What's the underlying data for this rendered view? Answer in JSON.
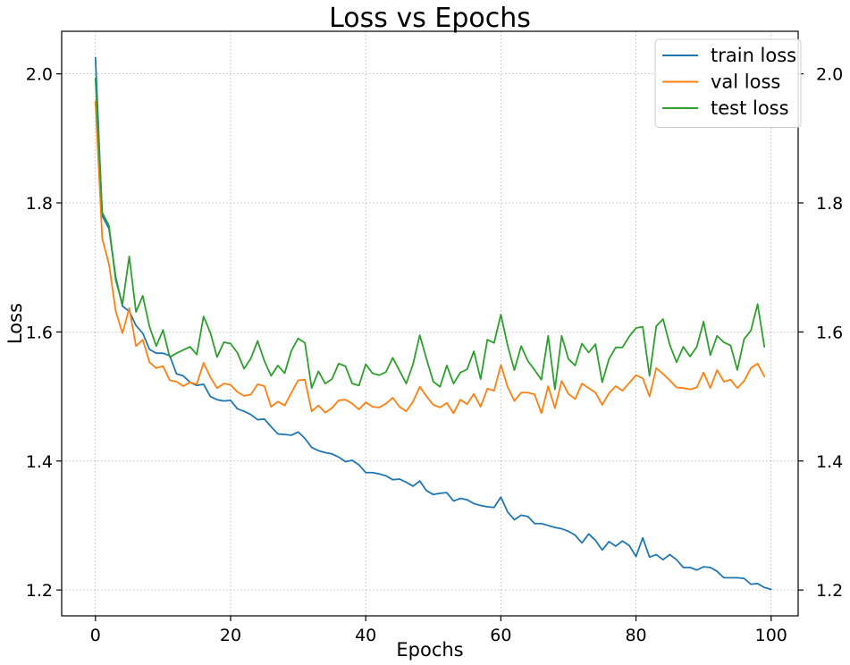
{
  "chart_data": {
    "type": "line",
    "title": "Loss vs Epochs",
    "xlabel": "Epochs",
    "ylabel": "Loss",
    "xlim": [
      -5,
      104
    ],
    "ylim": [
      1.16,
      2.066
    ],
    "xticks": [
      0,
      20,
      40,
      60,
      80,
      100
    ],
    "yticks": [
      1.2,
      1.4,
      1.6,
      1.8,
      2.0
    ],
    "yticks_right": true,
    "grid": true,
    "legend": "top-right",
    "series": [
      {
        "name": "train loss",
        "color": "#1f77b4",
        "values": [
          2.025,
          1.78,
          1.76,
          1.685,
          1.64,
          1.632,
          1.61,
          1.598,
          1.573,
          1.567,
          1.567,
          1.563,
          1.535,
          1.532,
          1.522,
          1.517,
          1.519,
          1.5,
          1.495,
          1.493,
          1.494,
          1.481,
          1.477,
          1.472,
          1.464,
          1.465,
          1.453,
          1.442,
          1.441,
          1.44,
          1.445,
          1.435,
          1.421,
          1.416,
          1.413,
          1.411,
          1.406,
          1.399,
          1.401,
          1.394,
          1.382,
          1.382,
          1.38,
          1.377,
          1.371,
          1.372,
          1.367,
          1.361,
          1.369,
          1.354,
          1.348,
          1.35,
          1.351,
          1.338,
          1.342,
          1.34,
          1.334,
          1.331,
          1.329,
          1.328,
          1.344,
          1.321,
          1.309,
          1.316,
          1.314,
          1.303,
          1.303,
          1.3,
          1.297,
          1.295,
          1.291,
          1.285,
          1.273,
          1.287,
          1.277,
          1.262,
          1.275,
          1.268,
          1.276,
          1.269,
          1.252,
          1.281,
          1.251,
          1.255,
          1.247,
          1.255,
          1.247,
          1.235,
          1.235,
          1.231,
          1.236,
          1.235,
          1.229,
          1.219,
          1.219,
          1.219,
          1.218,
          1.209,
          1.21,
          1.204,
          1.201
        ]
      },
      {
        "name": "val loss",
        "color": "#ff7f0e",
        "values": [
          1.957,
          1.745,
          1.705,
          1.632,
          1.598,
          1.637,
          1.578,
          1.588,
          1.553,
          1.544,
          1.547,
          1.525,
          1.523,
          1.516,
          1.522,
          1.519,
          1.552,
          1.53,
          1.513,
          1.52,
          1.518,
          1.507,
          1.501,
          1.503,
          1.519,
          1.516,
          1.484,
          1.492,
          1.486,
          1.506,
          1.525,
          1.526,
          1.477,
          1.486,
          1.475,
          1.482,
          1.494,
          1.495,
          1.489,
          1.48,
          1.491,
          1.484,
          1.483,
          1.489,
          1.498,
          1.484,
          1.477,
          1.492,
          1.515,
          1.5,
          1.487,
          1.483,
          1.49,
          1.474,
          1.495,
          1.488,
          1.504,
          1.484,
          1.512,
          1.509,
          1.549,
          1.515,
          1.493,
          1.506,
          1.506,
          1.503,
          1.474,
          1.516,
          1.482,
          1.524,
          1.504,
          1.496,
          1.52,
          1.513,
          1.506,
          1.487,
          1.505,
          1.516,
          1.509,
          1.521,
          1.533,
          1.528,
          1.5,
          1.544,
          1.535,
          1.525,
          1.514,
          1.513,
          1.511,
          1.514,
          1.537,
          1.513,
          1.541,
          1.523,
          1.526,
          1.513,
          1.524,
          1.544,
          1.551,
          1.531
        ]
      },
      {
        "name": "test loss",
        "color": "#2ca02c",
        "values": [
          1.993,
          1.785,
          1.765,
          1.68,
          1.643,
          1.717,
          1.631,
          1.656,
          1.608,
          1.578,
          1.603,
          1.561,
          1.567,
          1.572,
          1.577,
          1.565,
          1.624,
          1.599,
          1.561,
          1.584,
          1.582,
          1.568,
          1.543,
          1.559,
          1.586,
          1.555,
          1.532,
          1.548,
          1.536,
          1.571,
          1.59,
          1.583,
          1.513,
          1.539,
          1.52,
          1.527,
          1.551,
          1.547,
          1.52,
          1.517,
          1.55,
          1.536,
          1.533,
          1.538,
          1.56,
          1.54,
          1.52,
          1.55,
          1.595,
          1.558,
          1.523,
          1.515,
          1.548,
          1.52,
          1.537,
          1.542,
          1.57,
          1.527,
          1.588,
          1.583,
          1.627,
          1.579,
          1.541,
          1.578,
          1.555,
          1.541,
          1.526,
          1.594,
          1.511,
          1.594,
          1.558,
          1.548,
          1.582,
          1.568,
          1.581,
          1.522,
          1.558,
          1.576,
          1.576,
          1.593,
          1.606,
          1.608,
          1.532,
          1.609,
          1.62,
          1.58,
          1.553,
          1.577,
          1.562,
          1.577,
          1.616,
          1.564,
          1.594,
          1.584,
          1.579,
          1.541,
          1.589,
          1.602,
          1.643,
          1.577
        ]
      }
    ]
  }
}
